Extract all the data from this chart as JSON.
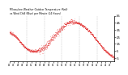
{
  "title": "Milwaukee Weather Outdoor Temperature (Red) vs Wind Chill (Blue) per Minute (24 Hours)",
  "bg_color": "#ffffff",
  "plot_bg_color": "#ffffff",
  "line_color_red": "#dd0000",
  "grid_color": "#bbbbbb",
  "ylim": [
    -10,
    55
  ],
  "ytick_values": [
    55,
    45,
    35,
    25,
    15,
    5,
    -5
  ],
  "ytick_labels": [
    "55",
    "45",
    "35",
    "25",
    "15",
    "5",
    "-5"
  ],
  "num_minutes": 1440,
  "vgrid_positions": [
    240,
    480,
    720,
    960,
    1200
  ],
  "curve_points_x": [
    0,
    60,
    120,
    180,
    240,
    300,
    360,
    420,
    480,
    540,
    600,
    660,
    720,
    780,
    840,
    900,
    960,
    1020,
    1080,
    1140,
    1200,
    1260,
    1320,
    1380,
    1439
  ],
  "curve_points_y": [
    32,
    28,
    22,
    14,
    8,
    5,
    5,
    7,
    10,
    17,
    24,
    32,
    38,
    44,
    47,
    46,
    44,
    40,
    35,
    28,
    20,
    12,
    5,
    0,
    -5
  ]
}
